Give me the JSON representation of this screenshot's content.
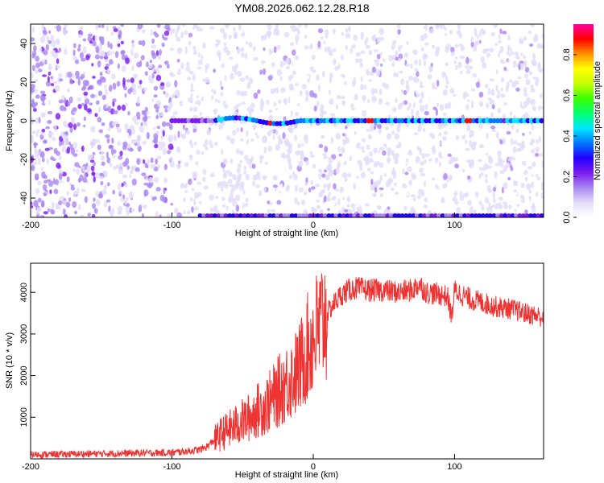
{
  "title": "YM08.2026.062.12.28.R18",
  "chart_data": [
    {
      "type": "heatmap",
      "panel": "spectrogram",
      "xlabel": "Height of straight line (km)",
      "ylabel": "Frequency (Hz)",
      "xlim": [
        -200,
        163
      ],
      "ylim": [
        -50,
        50
      ],
      "xticks": [
        -200,
        -100,
        0,
        100
      ],
      "yticks": [
        -40,
        -20,
        0,
        20,
        40
      ],
      "grid": false,
      "colorbar": {
        "label": "Normalized spectral amplitude",
        "range": [
          0,
          0.95
        ],
        "ticks": [
          0.0,
          0.2,
          0.4,
          0.6,
          0.8
        ],
        "colors": [
          "#ffffff",
          "#e4dcf8",
          "#a987f0",
          "#7a1cf0",
          "#2000ff",
          "#0078ff",
          "#00e8ff",
          "#00ff70",
          "#3cff00",
          "#c8ff00",
          "#ffff00",
          "#ff9000",
          "#ff0000",
          "#ff00a0"
        ]
      },
      "features": [
        {
          "name": "carrier line",
          "frequency_hz": 0,
          "x_range_km": [
            -100,
            163
          ],
          "peak_amplitude": 0.9,
          "peak_x_km": [
            -30,
            40,
            110
          ]
        },
        {
          "name": "edge line",
          "frequency_hz": -49,
          "x_range_km": [
            -80,
            163
          ],
          "peak_amplitude": 0.35
        },
        {
          "name": "background noise",
          "strong_x_range_km": [
            -200,
            -100
          ]
        }
      ]
    },
    {
      "type": "line",
      "panel": "snr",
      "xlabel": "Height of straight line (km)",
      "ylabel": "SNR (10 * v/v)",
      "xlim": [
        -200,
        163
      ],
      "ylim": [
        0,
        4700
      ],
      "xticks": [
        -200,
        -100,
        0,
        100
      ],
      "yticks": [
        1000,
        2000,
        3000,
        4000
      ],
      "grid": false,
      "series": [
        {
          "name": "SNR",
          "color": "#ee3333",
          "x": [
            -200,
            -180,
            -160,
            -140,
            -120,
            -100,
            -90,
            -80,
            -75,
            -70,
            -65,
            -60,
            -55,
            -50,
            -45,
            -40,
            -35,
            -30,
            -25,
            -20,
            -15,
            -10,
            -5,
            0,
            5,
            10,
            15,
            20,
            25,
            30,
            40,
            50,
            60,
            70,
            75,
            80,
            90,
            95,
            98,
            100,
            105,
            110,
            120,
            130,
            140,
            150,
            163
          ],
          "y": [
            100,
            110,
            120,
            130,
            140,
            150,
            180,
            220,
            300,
            450,
            600,
            700,
            800,
            900,
            1000,
            1150,
            1250,
            1400,
            1600,
            1800,
            1950,
            2150,
            2600,
            2900,
            3200,
            3500,
            3750,
            3950,
            4050,
            4100,
            4050,
            4050,
            4000,
            4050,
            4200,
            4000,
            3950,
            3900,
            3400,
            4050,
            3950,
            3850,
            3750,
            3650,
            3600,
            3500,
            3400
          ]
        }
      ]
    }
  ]
}
